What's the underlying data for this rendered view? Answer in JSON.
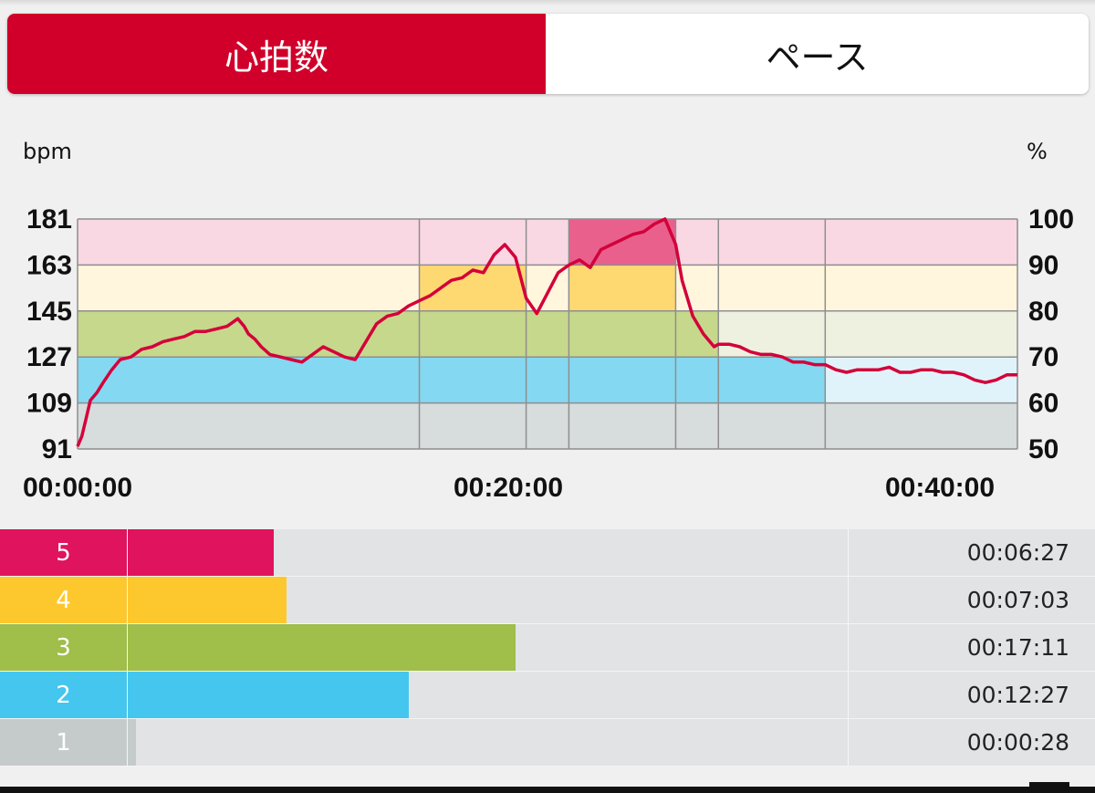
{
  "tabs": {
    "active_label": "心拍数",
    "inactive_label": "ペース"
  },
  "units": {
    "left": "bpm",
    "right": "%"
  },
  "colors": {
    "accent": "#d0002a",
    "line": "#d4003a",
    "zone5": "#e0135e",
    "zone4": "#fdc82e",
    "zone3": "#9fbe4a",
    "zone2": "#45c6ee",
    "zone1": "#c5cbcb"
  },
  "chart_data": {
    "type": "line",
    "x_unit": "minutes",
    "xlim": [
      0,
      44
    ],
    "ylim": [
      91,
      181
    ],
    "y_ticks": [
      "181",
      "163",
      "145",
      "127",
      "109",
      "91"
    ],
    "y2_ticks": [
      "100",
      "90",
      "80",
      "70",
      "60",
      "50"
    ],
    "x_tick_labels": [
      "00:00:00",
      "00:20:00",
      "00:40:00"
    ],
    "zone_bounds_bpm": [
      91,
      109,
      127,
      145,
      163,
      181
    ],
    "segments_min": [
      0,
      16,
      21,
      23,
      28,
      30,
      35,
      44
    ],
    "segment_zones": [
      3,
      4,
      3,
      5,
      3,
      2,
      1
    ],
    "series": [
      {
        "x": [
          0,
          0.2,
          0.4,
          0.6,
          0.9,
          1.2,
          1.6,
          2.0,
          2.5,
          3.0,
          3.5,
          4.0,
          4.5,
          5.0,
          5.5,
          6.0,
          6.5,
          7.0,
          7.5,
          7.8,
          8.0,
          8.3,
          8.6,
          9.0,
          9.5,
          10.0,
          10.5,
          11.0,
          11.5,
          12.0,
          12.5,
          13.0,
          13.5,
          14.0,
          14.5,
          15.0,
          15.5,
          16.0,
          16.5,
          17.0,
          17.5,
          18.0,
          18.5,
          19.0,
          19.5,
          20.0,
          20.5,
          21.0,
          21.5,
          22.0,
          22.5,
          23.0,
          23.5,
          24.0,
          24.5,
          25.0,
          25.5,
          26.0,
          26.5,
          27.0,
          27.5,
          28.0,
          28.3,
          28.8,
          29.3,
          29.8,
          30.0,
          30.5,
          31.0,
          31.5,
          32.0,
          32.5,
          33.0,
          33.5,
          34.0,
          34.5,
          35.0,
          35.5,
          36.0,
          36.5,
          37.0,
          37.5,
          38.0,
          38.5,
          39.0,
          39.5,
          40.0,
          40.5,
          41.0,
          41.5,
          42.0,
          42.5,
          43.0,
          43.5,
          44.0
        ],
        "y": [
          92,
          96,
          103,
          110,
          113,
          117,
          122,
          126,
          127,
          130,
          131,
          133,
          134,
          135,
          137,
          137,
          138,
          139,
          142,
          139,
          136,
          134,
          131,
          128,
          127,
          126,
          125,
          128,
          131,
          129,
          127,
          126,
          133,
          140,
          143,
          144,
          147,
          149,
          151,
          154,
          157,
          158,
          161,
          160,
          167,
          171,
          166,
          150,
          144,
          152,
          160,
          163,
          165,
          162,
          169,
          171,
          173,
          175,
          176,
          179,
          181,
          171,
          157,
          143,
          136,
          131,
          132,
          132,
          131,
          129,
          128,
          128,
          127,
          125,
          125,
          124,
          124,
          122,
          121,
          122,
          122,
          122,
          123,
          121,
          121,
          122,
          122,
          121,
          121,
          120,
          118,
          117,
          118,
          120,
          120
        ]
      }
    ]
  },
  "zones": [
    {
      "label": "5",
      "time": "00:06:27",
      "fraction": 0.1506
    },
    {
      "label": "4",
      "time": "00:07:03",
      "fraction": 0.1646
    },
    {
      "label": "3",
      "time": "00:17:11",
      "fraction": 0.401
    },
    {
      "label": "2",
      "time": "00:12:27",
      "fraction": 0.2906
    },
    {
      "label": "1",
      "time": "00:00:28",
      "fraction": 0.0109
    }
  ]
}
